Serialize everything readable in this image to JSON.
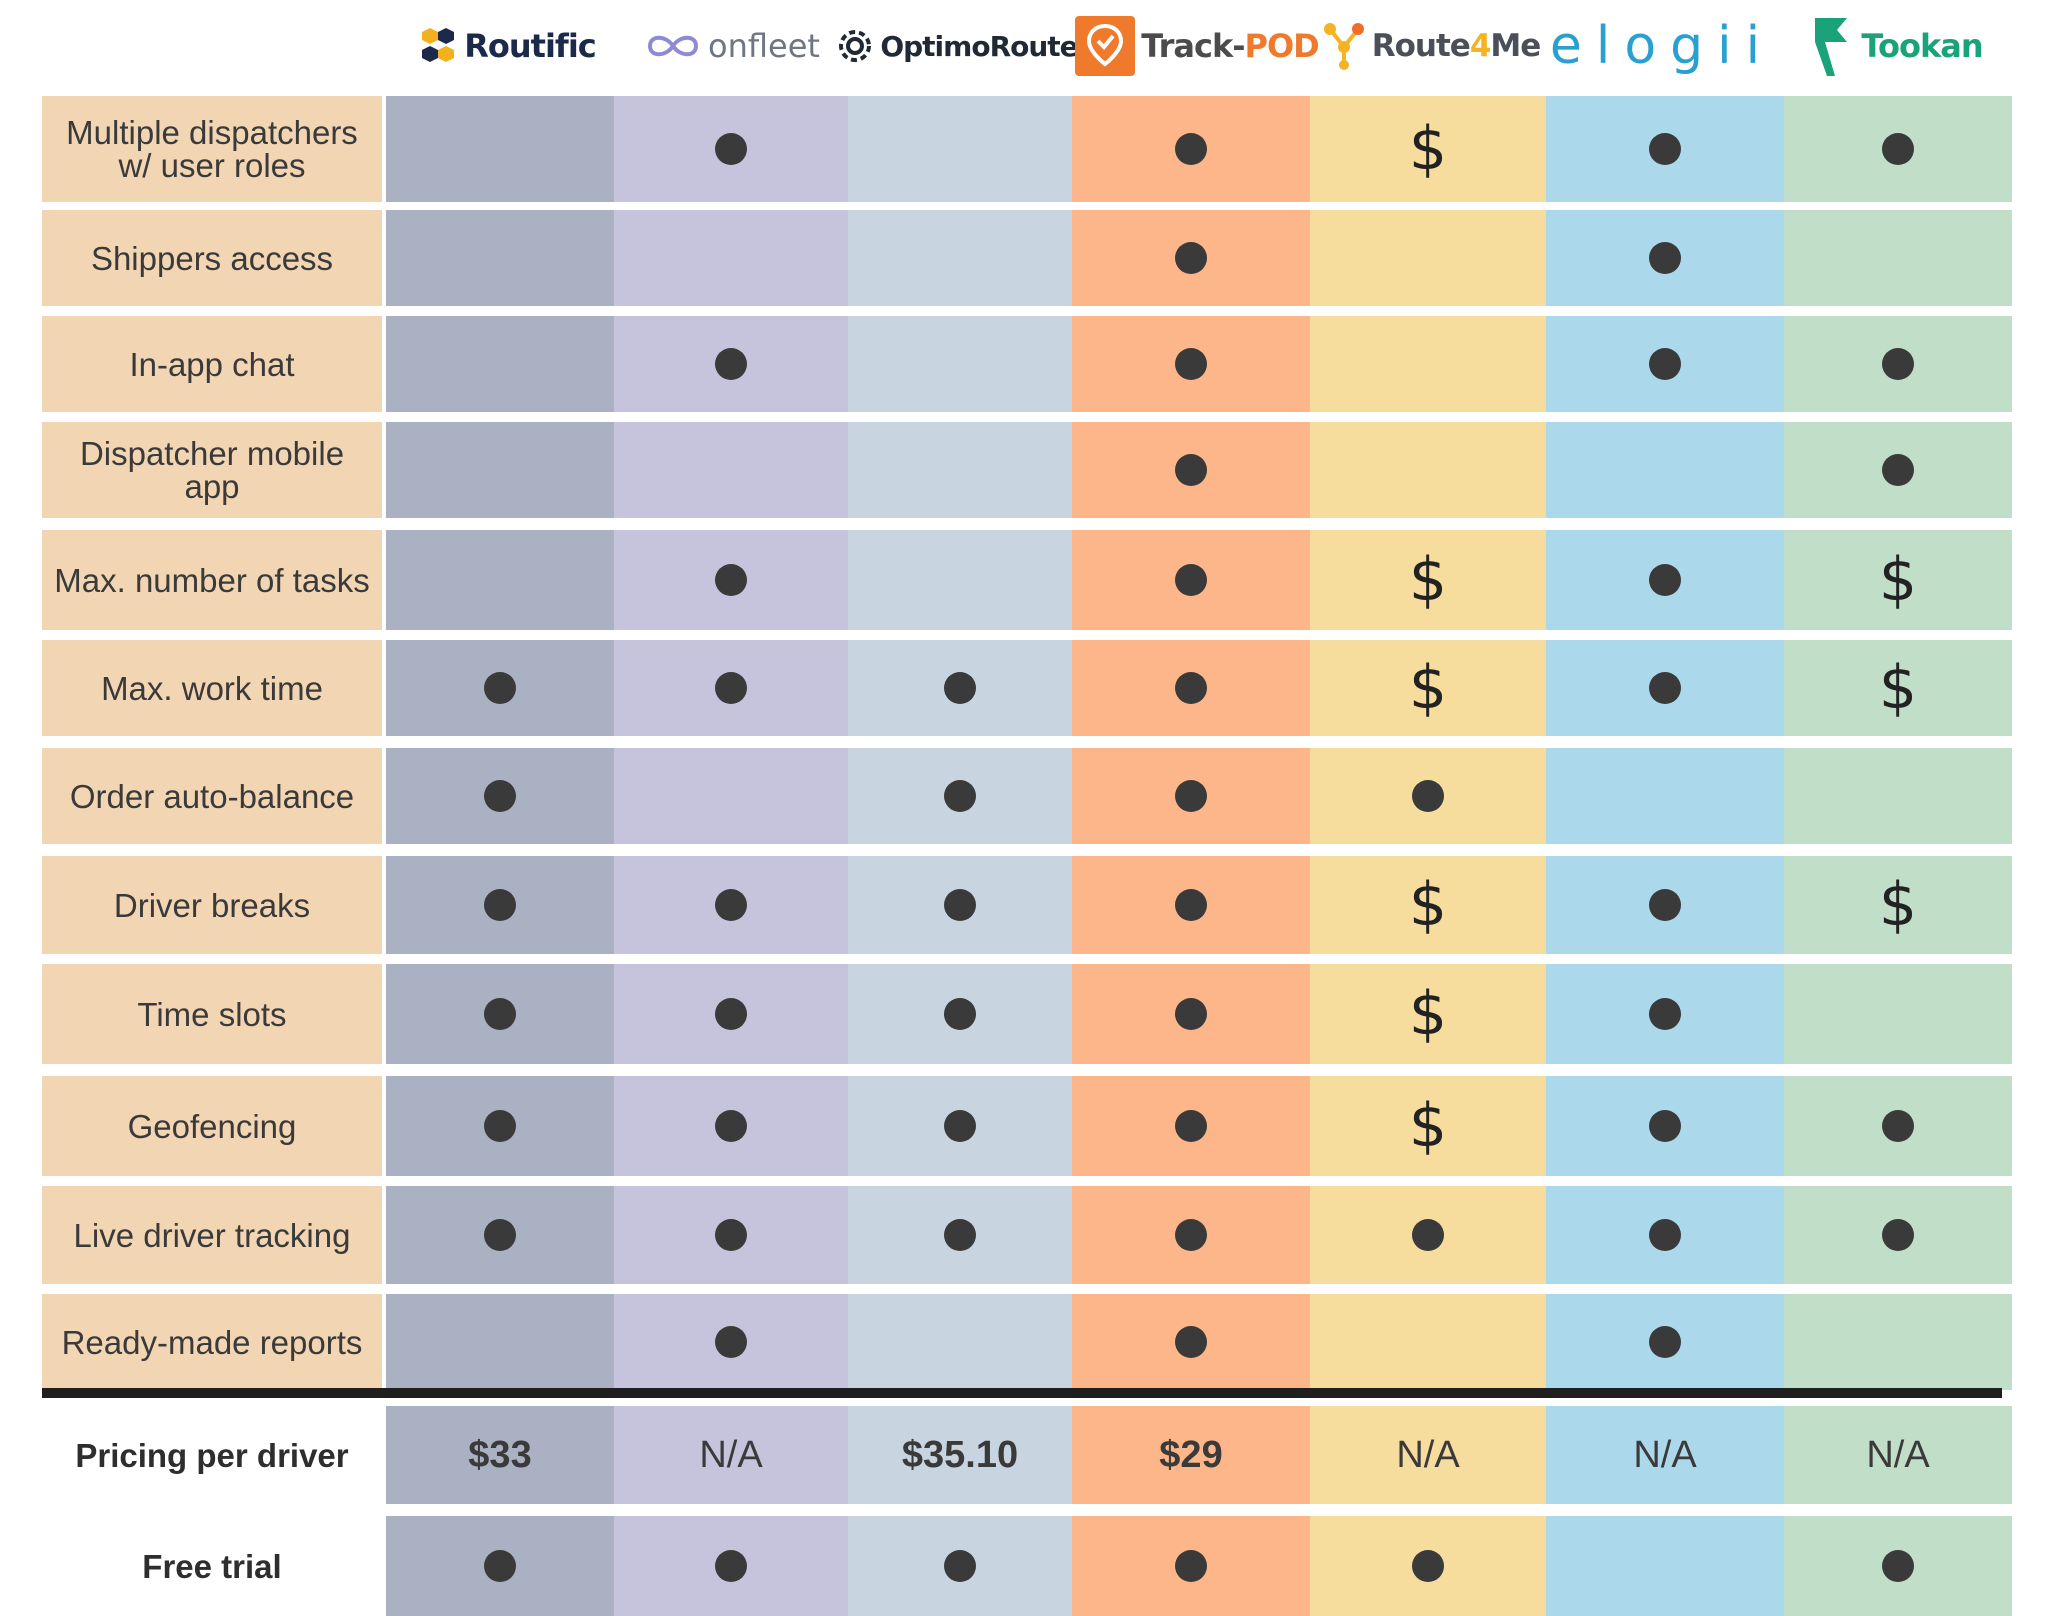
{
  "brands": [
    {
      "name": "Routific",
      "accent": "#1b2a4a",
      "icon": "hexagon-cluster-icon",
      "column_color": "#aab1c2"
    },
    {
      "name": "onfleet",
      "accent": "#6e7583",
      "icon": "infinity-icon",
      "column_color": "#c6c4dc"
    },
    {
      "name": "OptimoRoute",
      "accent": "#1f2a36",
      "icon": "gear-ring-icon",
      "column_color": "#c8d4e0"
    },
    {
      "name": "Track-",
      "name_suffix": "POD",
      "accent": "#ef7a2c",
      "icon": "map-pin-check-icon",
      "column_color": "#fdb68a"
    },
    {
      "name": "Route",
      "name_mid": "4",
      "name_suffix": "Me",
      "accent": "#4b4f5a",
      "icon": "network-nodes-icon",
      "column_color": "#f7dd9d"
    },
    {
      "name": "elogii",
      "accent": "#2aa0d0",
      "icon": "",
      "column_color": "#acd8ec"
    },
    {
      "name": "Tookan",
      "accent": "#1aa37a",
      "icon": "flag-icon",
      "column_color": "#c1dfc8"
    }
  ],
  "features": [
    {
      "label": "Multiple dispatchers w/ user roles",
      "values": [
        "",
        "dot",
        "",
        "dot",
        "$",
        "dot",
        "dot"
      ]
    },
    {
      "label": "Shippers access",
      "values": [
        "",
        "",
        "",
        "dot",
        "",
        "dot",
        ""
      ]
    },
    {
      "label": "In-app chat",
      "values": [
        "",
        "dot",
        "",
        "dot",
        "",
        "dot",
        "dot"
      ]
    },
    {
      "label": "Dispatcher mobile app",
      "values": [
        "",
        "",
        "",
        "dot",
        "",
        "",
        "dot"
      ]
    },
    {
      "label": "Max. number of tasks",
      "values": [
        "",
        "dot",
        "",
        "dot",
        "$",
        "dot",
        "$"
      ]
    },
    {
      "label": "Max. work time",
      "values": [
        "dot",
        "dot",
        "dot",
        "dot",
        "$",
        "dot",
        "$"
      ]
    },
    {
      "label": "Order auto-balance",
      "values": [
        "dot",
        "",
        "dot",
        "dot",
        "dot",
        "",
        ""
      ]
    },
    {
      "label": "Driver breaks",
      "values": [
        "dot",
        "dot",
        "dot",
        "dot",
        "$",
        "dot",
        "$"
      ]
    },
    {
      "label": "Time slots",
      "values": [
        "dot",
        "dot",
        "dot",
        "dot",
        "$",
        "dot",
        ""
      ]
    },
    {
      "label": "Geofencing",
      "values": [
        "dot",
        "dot",
        "dot",
        "dot",
        "$",
        "dot",
        "dot"
      ]
    },
    {
      "label": "Live driver tracking",
      "values": [
        "dot",
        "dot",
        "dot",
        "dot",
        "dot",
        "dot",
        "dot"
      ]
    },
    {
      "label": "Ready-made reports",
      "values": [
        "",
        "dot",
        "",
        "dot",
        "",
        "dot",
        ""
      ]
    }
  ],
  "pricing": {
    "label": "Pricing per driver",
    "values": [
      "$33",
      "N/A",
      "$35.10",
      "$29",
      "N/A",
      "N/A",
      "N/A"
    ],
    "bold": [
      true,
      false,
      true,
      true,
      false,
      false,
      false
    ]
  },
  "trial": {
    "label": "Free trial",
    "values": [
      "dot",
      "dot",
      "dot",
      "dot",
      "dot",
      "",
      "dot"
    ]
  },
  "colors": {
    "feature_label_bg": "#f2d5b2",
    "mark": "#3a3a3a",
    "separator": "#1f1f1f"
  }
}
